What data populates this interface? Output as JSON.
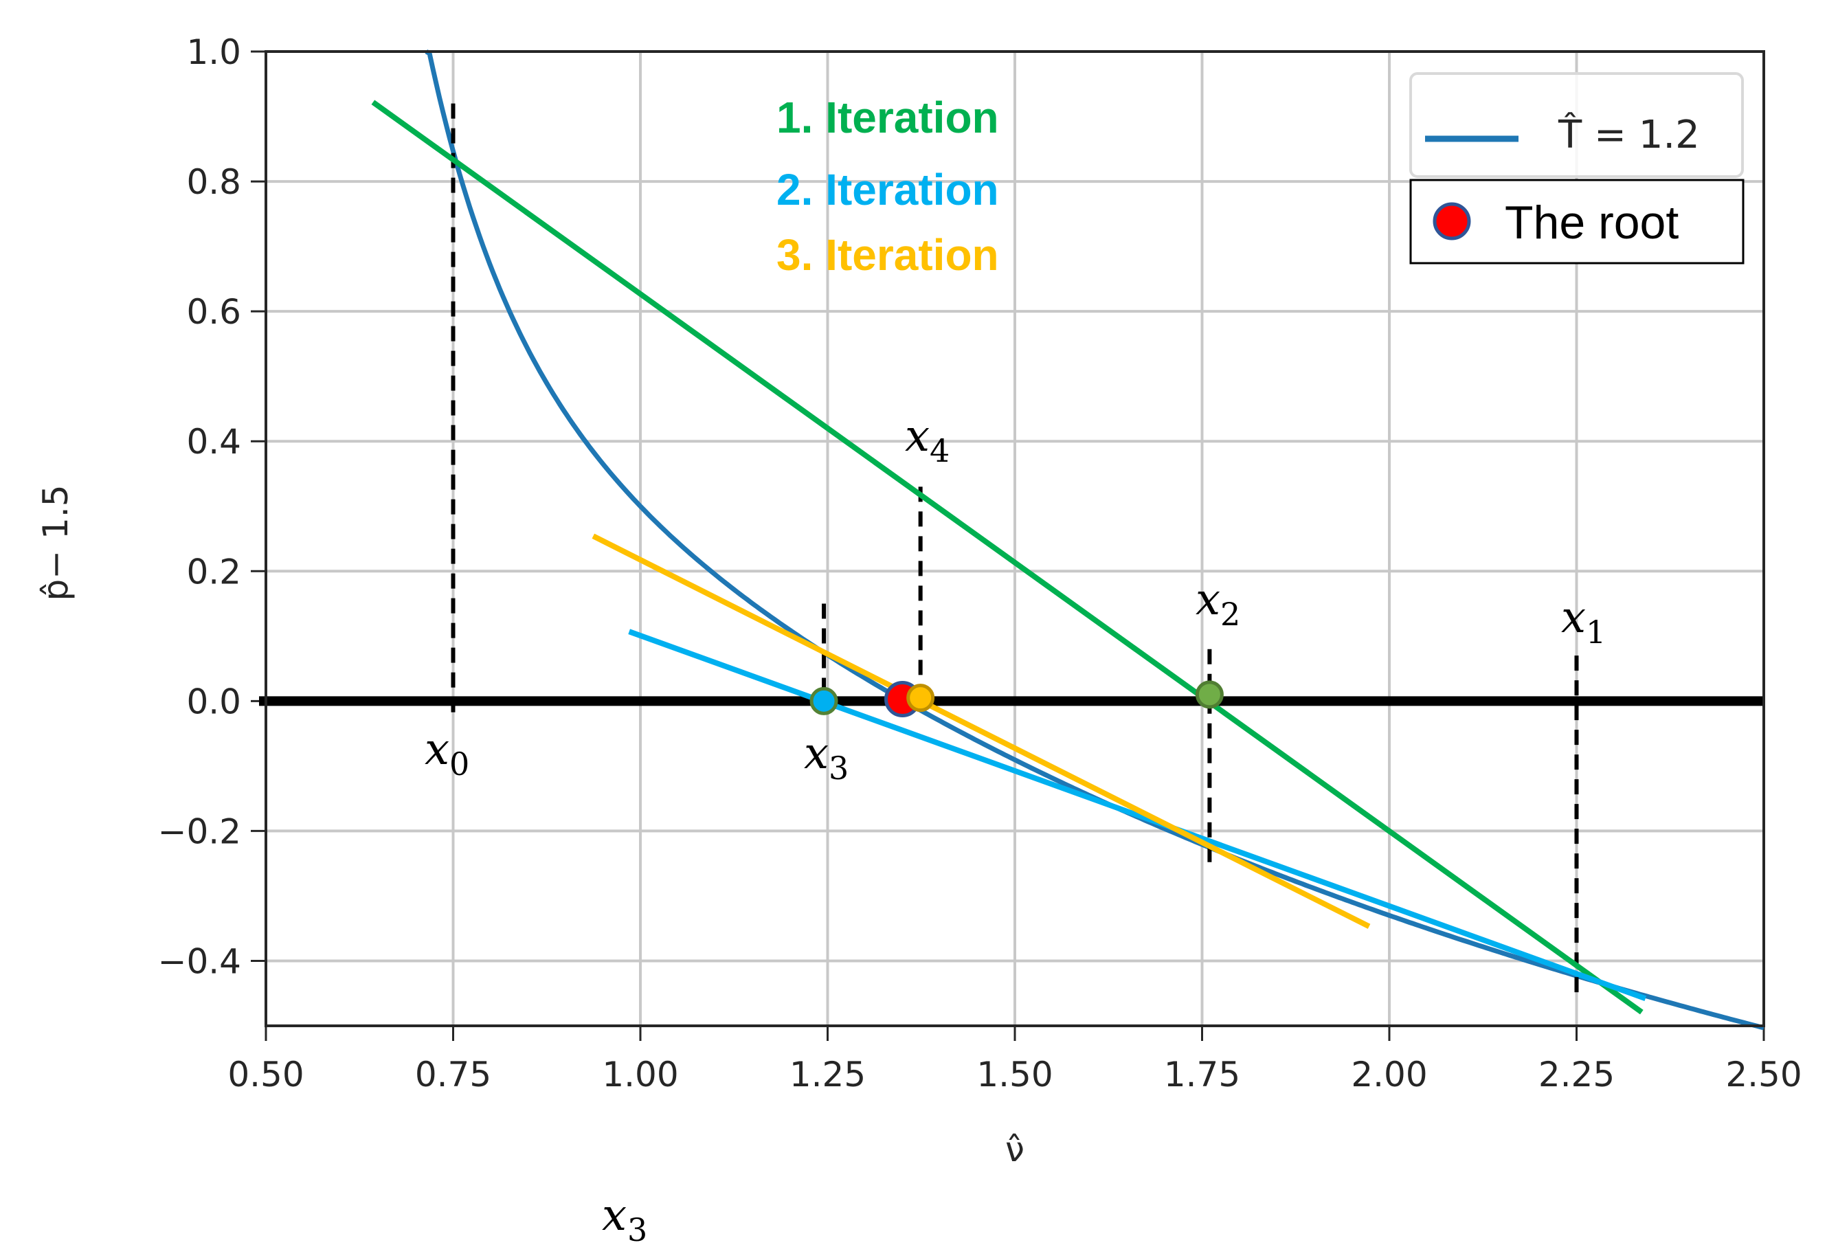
{
  "chart_data": {
    "type": "line",
    "title": "",
    "xlabel": "ν̂",
    "ylabel": "p̂− 1.5",
    "xlim": [
      0.5,
      2.5
    ],
    "ylim": [
      -0.5,
      1.0
    ],
    "grid": true,
    "x_ticks": [
      0.5,
      0.75,
      1.0,
      1.25,
      1.5,
      1.75,
      2.0,
      2.25,
      2.5
    ],
    "x_tick_labels": [
      "0.50",
      "0.75",
      "1.00",
      "1.25",
      "1.50",
      "1.75",
      "2.00",
      "2.25",
      "2.50"
    ],
    "y_ticks": [
      1.0,
      0.8,
      0.6,
      0.4,
      0.2,
      0.0,
      -0.2,
      -0.4
    ],
    "y_tick_labels": [
      "1.0",
      "0.8",
      "0.6",
      "0.4",
      "0.2",
      "0.0",
      "−0.2",
      "−0.4"
    ],
    "curve": {
      "name": "T̂ = 1.2",
      "color": "#1f77b4",
      "formula": "8*1.2/(3v-1) - 3/v^2 - 1.5",
      "x_range": [
        0.714,
        2.5
      ]
    },
    "zero_line": {
      "y": 0.0,
      "color": "#000000"
    },
    "secant_lines": [
      {
        "name": "1. Iteration",
        "color": "#00B050",
        "x": [
          0.643,
          2.337
        ],
        "y": [
          0.922,
          -0.479
        ]
      },
      {
        "name": "2. Iteration",
        "color": "#00B0F0",
        "x": [
          0.985,
          2.342
        ],
        "y": [
          0.107,
          -0.458
        ]
      },
      {
        "name": "3. Iteration",
        "color": "#FFC000",
        "x": [
          0.937,
          1.973
        ],
        "y": [
          0.254,
          -0.347
        ]
      }
    ],
    "iterates": [
      {
        "label": "x",
        "sub": "0",
        "x": 0.75,
        "y_top": 0.92,
        "y_bottom": -0.02
      },
      {
        "label": "x",
        "sub": "1",
        "x": 2.25,
        "y_top": 0.07,
        "y_bottom": -0.45
      },
      {
        "label": "x",
        "sub": "2",
        "x": 1.76,
        "y_top": 0.08,
        "y_bottom": -0.26
      },
      {
        "label": "x",
        "sub": "3",
        "x": 1.245,
        "y_top": 0.15,
        "y_bottom": 0.01
      },
      {
        "label": "x",
        "sub": "4",
        "x": 1.374,
        "y_top": 0.33,
        "y_bottom": 0.02
      }
    ],
    "markers": [
      {
        "name": "x2-point",
        "x": 1.76,
        "y": 0.01,
        "fill": "#70AD47",
        "stroke": "#507E32"
      },
      {
        "name": "x3-point",
        "x": 1.245,
        "y": 0.0,
        "fill": "#00B0F0",
        "stroke": "#548235"
      },
      {
        "name": "root-point",
        "x": 1.35,
        "y": 0.003,
        "fill": "#FF0000",
        "stroke": "#2F5597"
      },
      {
        "name": "x4-point",
        "x": 1.374,
        "y": 0.005,
        "fill": "#FFC000",
        "stroke": "#BF9000"
      }
    ],
    "annotations": [
      "1. Iteration",
      "2. Iteration",
      "3. Iteration"
    ],
    "legend": {
      "placement": "top-right",
      "entries": [
        {
          "label": "T̂ = 1.2",
          "type": "line",
          "color": "#1f77b4"
        },
        {
          "label": "The root",
          "type": "marker",
          "color": "#FF0000"
        }
      ]
    },
    "extra_label": {
      "label": "x",
      "sub": "3"
    }
  }
}
